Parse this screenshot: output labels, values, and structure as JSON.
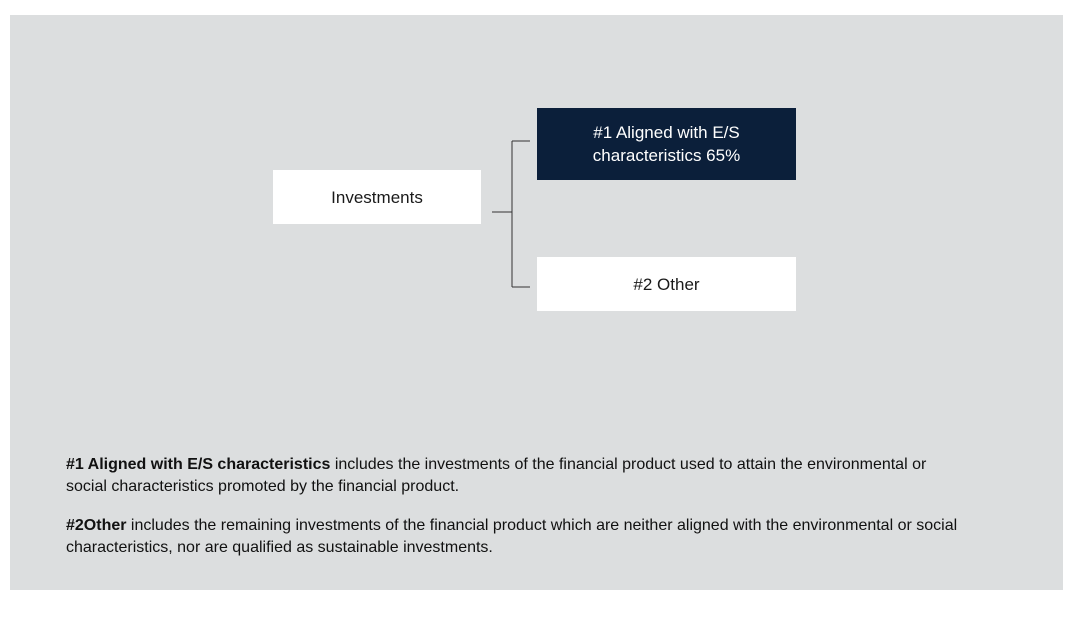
{
  "nodes": [
    {
      "label_lines": [
        "Investments"
      ]
    },
    {
      "label_lines": [
        "#1 Aligned with E/S",
        "characteristics 65%"
      ]
    },
    {
      "label_lines": [
        "#2 Other"
      ]
    }
  ],
  "notes": [
    {
      "term": "#1 Aligned with E/S characteristics",
      "text": "includes the investments of the financial product used to attain the environmental or social characteristics promoted by the financial product."
    },
    {
      "term": "#2Other",
      "text": "includes the remaining investments of the financial product which are neither aligned with the environmental or social characteristics, nor are qualified as sustainable investments."
    }
  ]
}
